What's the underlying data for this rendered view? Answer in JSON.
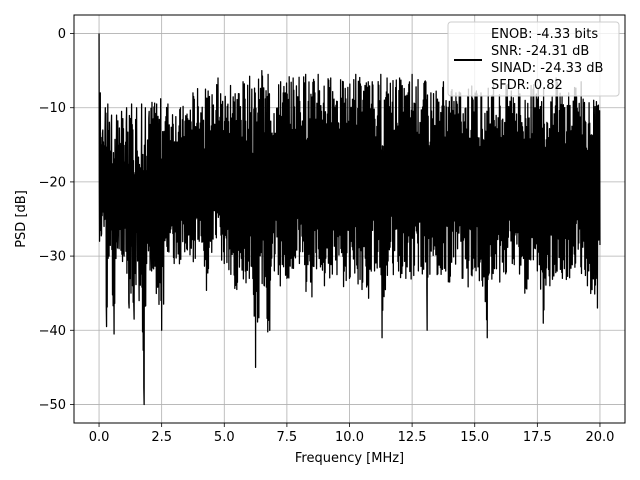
{
  "chart_data": {
    "type": "line",
    "title": "",
    "xlabel": "Frequency [MHz]",
    "ylabel": "PSD [dB]",
    "xlim": [
      -1.0,
      21.0
    ],
    "ylim": [
      -52.5,
      2.5
    ],
    "xticks": [
      0.0,
      2.5,
      5.0,
      7.5,
      10.0,
      12.5,
      15.0,
      17.5,
      20.0
    ],
    "xtick_labels": [
      "0.0",
      "2.5",
      "5.0",
      "7.5",
      "10.0",
      "12.5",
      "15.0",
      "17.5",
      "20.0"
    ],
    "yticks": [
      0,
      -10,
      -20,
      -30,
      -40,
      -50
    ],
    "ytick_labels": [
      "0",
      "−10",
      "−20",
      "−30",
      "−40",
      "−50"
    ],
    "grid": true,
    "legend_position": "top-right",
    "legend_entries": [
      "ENOB: -4.33 bits",
      "SNR: -24.31 dB",
      "SINAD: -24.33 dB",
      "SFDR: 0.82"
    ],
    "series": [
      {
        "color": "#000000",
        "x": [
          0.0,
          0.02,
          0.05,
          0.1,
          0.15,
          0.2,
          0.25,
          0.3,
          0.35,
          0.4,
          0.5,
          0.6,
          0.7,
          0.8,
          0.9,
          1.0,
          1.1,
          1.2,
          1.3,
          1.4,
          1.5,
          1.6,
          1.7,
          1.8,
          1.85,
          1.9,
          2.0,
          2.1,
          2.3,
          2.5,
          2.75,
          3.0,
          3.25,
          3.5,
          3.75,
          4.0,
          4.25,
          4.5,
          4.75,
          5.0,
          5.25,
          5.5,
          5.75,
          6.0,
          6.1,
          6.25,
          6.5,
          6.6,
          6.75,
          7.0,
          7.25,
          7.5,
          7.75,
          8.0,
          8.25,
          8.5,
          8.75,
          9.0,
          9.25,
          9.5,
          9.75,
          10.0,
          10.25,
          10.5,
          10.75,
          11.0,
          11.25,
          11.3,
          11.5,
          11.75,
          12.0,
          12.25,
          12.5,
          12.75,
          13.0,
          13.1,
          13.25,
          13.5,
          13.75,
          14.0,
          14.25,
          14.5,
          14.75,
          15.0,
          15.25,
          15.5,
          15.75,
          16.0,
          16.25,
          16.5,
          16.75,
          17.0,
          17.25,
          17.5,
          17.75,
          18.0,
          18.25,
          18.5,
          18.75,
          19.0,
          19.25,
          19.5,
          19.75,
          19.9,
          20.0
        ],
        "y_high": [
          0.0,
          -3.0,
          -8.0,
          -10.0,
          -13.0,
          -11.0,
          -10.0,
          -10.5,
          -9.5,
          -12.0,
          -11.0,
          -11.5,
          -11.0,
          -12.0,
          -10.5,
          -11.5,
          -10.0,
          -10.0,
          -9.5,
          -10.5,
          -10.0,
          -10.5,
          -9.5,
          -11.0,
          -10.0,
          -12.5,
          -10.5,
          -9.0,
          -9.5,
          -8.5,
          -9.5,
          -9.0,
          -10.0,
          -9.0,
          -8.0,
          -7.0,
          -7.5,
          -8.0,
          -6.0,
          -7.5,
          -7.0,
          -6.0,
          -6.5,
          -5.5,
          -7.5,
          -6.5,
          -5.0,
          -6.0,
          -5.5,
          -6.5,
          -6.5,
          -5.5,
          -6.0,
          -5.0,
          -5.5,
          -6.0,
          -5.5,
          -5.0,
          -6.0,
          -5.0,
          -6.5,
          -6.0,
          -5.5,
          -5.0,
          -6.5,
          -6.0,
          -5.5,
          -7.0,
          -6.0,
          -5.5,
          -6.0,
          -6.5,
          -5.5,
          -6.0,
          -6.5,
          -5.5,
          -8.0,
          -7.0,
          -6.5,
          -7.0,
          -8.0,
          -6.5,
          -7.5,
          -6.0,
          -8.0,
          -7.0,
          -6.5,
          -7.5,
          -7.0,
          -6.0,
          -7.5,
          -8.0,
          -7.0,
          -6.5,
          -7.5,
          -7.0,
          -6.0,
          -7.5,
          -8.0,
          -7.0,
          -6.5,
          -8.0,
          -9.0,
          -8.5,
          -9.0
        ],
        "y_low": [
          -17.5,
          -28.0,
          -31.0,
          -27.0,
          -30.0,
          -26.0,
          -29.0,
          -39.5,
          -35.0,
          -30.0,
          -33.0,
          -40.5,
          -32.5,
          -29.0,
          -31.5,
          -30.0,
          -32.0,
          -37.0,
          -35.5,
          -38.5,
          -34.0,
          -36.0,
          -38.5,
          -50.0,
          -40.0,
          -31.0,
          -33.0,
          -32.0,
          -35.5,
          -40.0,
          -30.0,
          -31.0,
          -32.0,
          -29.0,
          -33.0,
          -28.0,
          -36.0,
          -29.5,
          -32.0,
          -31.0,
          -35.0,
          -34.5,
          -37.0,
          -33.0,
          -35.5,
          -45.0,
          -34.5,
          -34.0,
          -43.0,
          -32.0,
          -35.0,
          -33.0,
          -33.5,
          -31.0,
          -35.0,
          -35.5,
          -32.0,
          -34.0,
          -33.0,
          -32.5,
          -35.0,
          -33.0,
          -34.0,
          -34.5,
          -36.0,
          -32.0,
          -31.5,
          -41.0,
          -33.0,
          -32.5,
          -34.0,
          -33.0,
          -35.0,
          -32.0,
          -33.5,
          -40.0,
          -31.0,
          -32.5,
          -34.0,
          -33.5,
          -32.0,
          -33.0,
          -34.5,
          -31.5,
          -35.0,
          -41.0,
          -32.0,
          -33.5,
          -34.0,
          -31.0,
          -32.0,
          -35.0,
          -33.5,
          -32.0,
          -39.5,
          -34.0,
          -32.5,
          -33.0,
          -35.0,
          -31.5,
          -33.0,
          -34.0,
          -36.0,
          -37.0,
          -28.5
        ]
      }
    ]
  }
}
